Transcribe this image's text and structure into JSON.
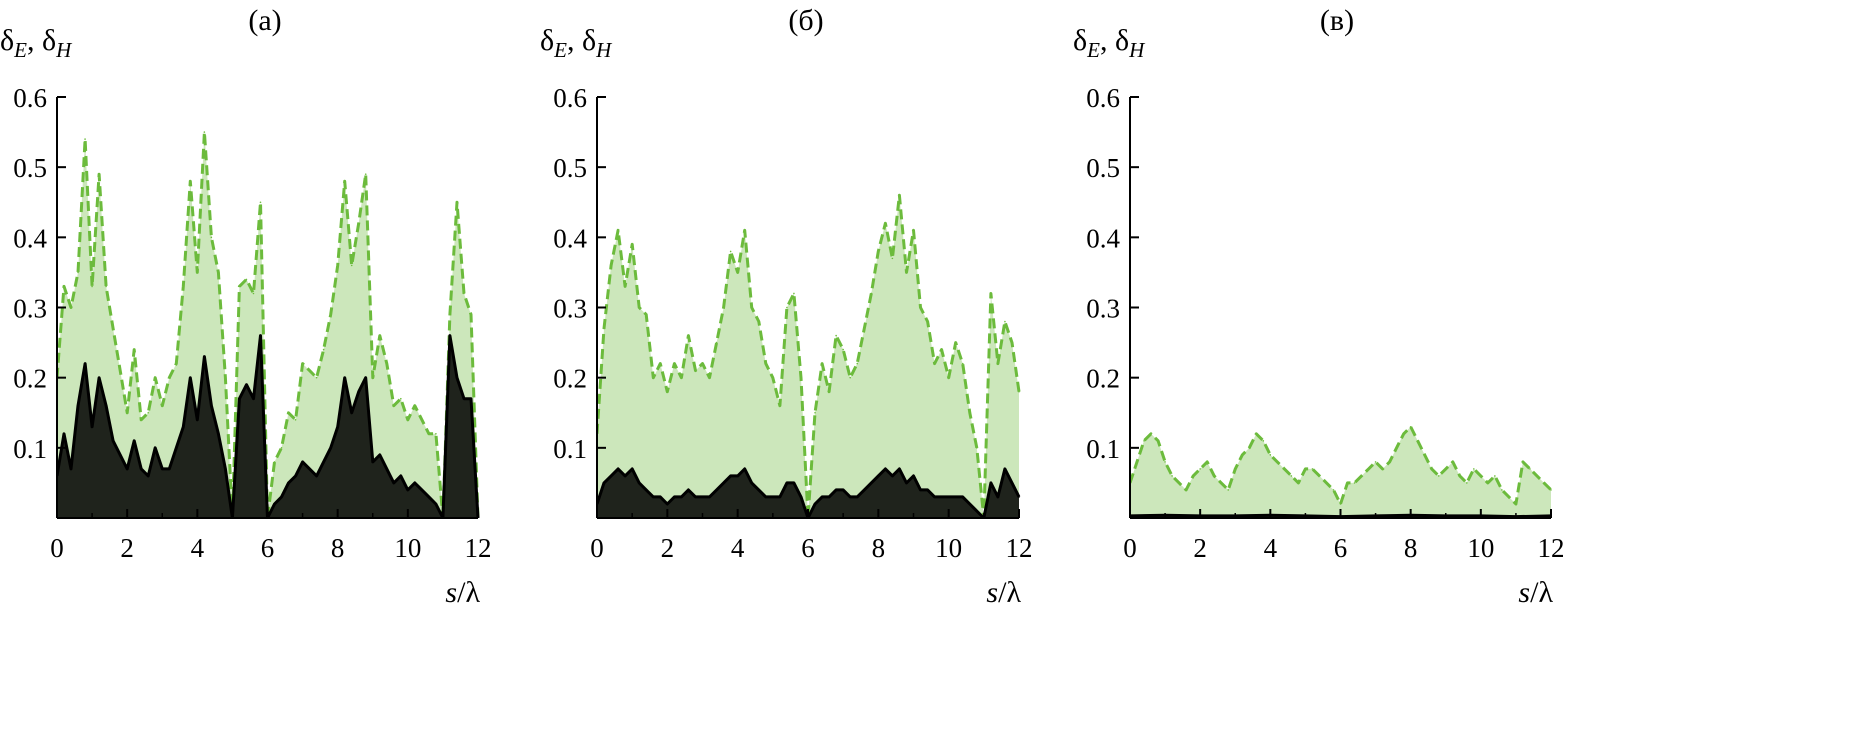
{
  "colors": {
    "dashed_series": "#6cbb3c",
    "solid_series": "#000000",
    "axis": "#000000"
  },
  "chart_data": [
    {
      "type": "line",
      "title": "(а)",
      "ylabel_main": "δ",
      "ylabel_sub1": "E",
      "ylabel_sep": ", δ",
      "ylabel_sub2": "H",
      "xlabel_main": "s",
      "xlabel_rest": "/λ",
      "xlim": [
        0,
        12
      ],
      "ylim": [
        0,
        0.6
      ],
      "xticks": [
        "0",
        "2",
        "4",
        "6",
        "8",
        "10",
        "12"
      ],
      "yticks": [
        "0.1",
        "0.2",
        "0.3",
        "0.4",
        "0.5",
        "0.6"
      ],
      "grid": false,
      "series": [
        {
          "style": "dashed",
          "color": "#6cbb3c",
          "x": [
            0.0,
            0.2,
            0.4,
            0.6,
            0.8,
            1.0,
            1.2,
            1.4,
            1.6,
            1.8,
            2.0,
            2.2,
            2.4,
            2.6,
            2.8,
            3.0,
            3.2,
            3.4,
            3.6,
            3.8,
            4.0,
            4.2,
            4.4,
            4.6,
            4.8,
            5.0,
            5.2,
            5.4,
            5.6,
            5.8,
            6.0,
            6.2,
            6.4,
            6.6,
            6.8,
            7.0,
            7.2,
            7.4,
            7.6,
            7.8,
            8.0,
            8.2,
            8.4,
            8.6,
            8.8,
            9.0,
            9.2,
            9.4,
            9.6,
            9.8,
            10.0,
            10.2,
            10.4,
            10.6,
            10.8,
            11.0,
            11.2,
            11.4,
            11.6,
            11.8,
            12.0
          ],
          "y": [
            0.2,
            0.33,
            0.3,
            0.35,
            0.54,
            0.33,
            0.49,
            0.33,
            0.27,
            0.21,
            0.15,
            0.24,
            0.14,
            0.15,
            0.2,
            0.16,
            0.2,
            0.22,
            0.33,
            0.48,
            0.35,
            0.55,
            0.4,
            0.35,
            0.2,
            0.0,
            0.33,
            0.34,
            0.32,
            0.45,
            0.0,
            0.08,
            0.1,
            0.15,
            0.14,
            0.22,
            0.21,
            0.2,
            0.24,
            0.29,
            0.36,
            0.48,
            0.36,
            0.42,
            0.49,
            0.2,
            0.26,
            0.22,
            0.16,
            0.17,
            0.14,
            0.16,
            0.14,
            0.12,
            0.12,
            0.0,
            0.29,
            0.45,
            0.32,
            0.29,
            0.0
          ]
        },
        {
          "style": "solid",
          "color": "#000000",
          "x": [
            0.0,
            0.2,
            0.4,
            0.6,
            0.8,
            1.0,
            1.2,
            1.4,
            1.6,
            1.8,
            2.0,
            2.2,
            2.4,
            2.6,
            2.8,
            3.0,
            3.2,
            3.4,
            3.6,
            3.8,
            4.0,
            4.2,
            4.4,
            4.6,
            4.8,
            5.0,
            5.2,
            5.4,
            5.6,
            5.8,
            6.0,
            6.2,
            6.4,
            6.6,
            6.8,
            7.0,
            7.2,
            7.4,
            7.6,
            7.8,
            8.0,
            8.2,
            8.4,
            8.6,
            8.8,
            9.0,
            9.2,
            9.4,
            9.6,
            9.8,
            10.0,
            10.2,
            10.4,
            10.6,
            10.8,
            11.0,
            11.2,
            11.4,
            11.6,
            11.8,
            12.0
          ],
          "y": [
            0.06,
            0.12,
            0.07,
            0.16,
            0.22,
            0.13,
            0.2,
            0.16,
            0.11,
            0.09,
            0.07,
            0.11,
            0.07,
            0.06,
            0.1,
            0.07,
            0.07,
            0.1,
            0.13,
            0.2,
            0.14,
            0.23,
            0.16,
            0.12,
            0.07,
            0.0,
            0.17,
            0.19,
            0.17,
            0.26,
            0.0,
            0.02,
            0.03,
            0.05,
            0.06,
            0.08,
            0.07,
            0.06,
            0.08,
            0.1,
            0.13,
            0.2,
            0.15,
            0.18,
            0.2,
            0.08,
            0.09,
            0.07,
            0.05,
            0.06,
            0.04,
            0.05,
            0.04,
            0.03,
            0.02,
            0.0,
            0.26,
            0.2,
            0.17,
            0.17,
            0.0
          ]
        }
      ]
    },
    {
      "type": "line",
      "title": "(б)",
      "ylabel_main": "δ",
      "ylabel_sub1": "E",
      "ylabel_sep": ", δ",
      "ylabel_sub2": "H",
      "xlabel_main": "s",
      "xlabel_rest": "/λ",
      "xlim": [
        0,
        12
      ],
      "ylim": [
        0,
        0.6
      ],
      "xticks": [
        "0",
        "2",
        "4",
        "6",
        "8",
        "10",
        "12"
      ],
      "yticks": [
        "0.1",
        "0.2",
        "0.3",
        "0.4",
        "0.5",
        "0.6"
      ],
      "grid": false,
      "series": [
        {
          "style": "dashed",
          "color": "#6cbb3c",
          "x": [
            0.0,
            0.2,
            0.4,
            0.6,
            0.8,
            1.0,
            1.2,
            1.4,
            1.6,
            1.8,
            2.0,
            2.2,
            2.4,
            2.6,
            2.8,
            3.0,
            3.2,
            3.4,
            3.6,
            3.8,
            4.0,
            4.2,
            4.4,
            4.6,
            4.8,
            5.0,
            5.2,
            5.4,
            5.6,
            5.8,
            6.0,
            6.2,
            6.4,
            6.6,
            6.8,
            7.0,
            7.2,
            7.4,
            7.6,
            7.8,
            8.0,
            8.2,
            8.4,
            8.6,
            8.8,
            9.0,
            9.2,
            9.4,
            9.6,
            9.8,
            10.0,
            10.2,
            10.4,
            10.6,
            10.8,
            11.0,
            11.2,
            11.4,
            11.6,
            11.8,
            12.0
          ],
          "y": [
            0.12,
            0.27,
            0.36,
            0.41,
            0.33,
            0.39,
            0.3,
            0.29,
            0.2,
            0.22,
            0.18,
            0.22,
            0.2,
            0.26,
            0.21,
            0.22,
            0.2,
            0.25,
            0.3,
            0.38,
            0.35,
            0.41,
            0.3,
            0.28,
            0.22,
            0.2,
            0.16,
            0.3,
            0.32,
            0.2,
            0.0,
            0.15,
            0.22,
            0.18,
            0.26,
            0.24,
            0.2,
            0.22,
            0.27,
            0.32,
            0.38,
            0.42,
            0.37,
            0.46,
            0.35,
            0.41,
            0.3,
            0.28,
            0.22,
            0.24,
            0.2,
            0.25,
            0.22,
            0.15,
            0.1,
            0.0,
            0.32,
            0.22,
            0.28,
            0.25,
            0.18
          ]
        },
        {
          "style": "solid",
          "color": "#000000",
          "x": [
            0.0,
            0.2,
            0.4,
            0.6,
            0.8,
            1.0,
            1.2,
            1.4,
            1.6,
            1.8,
            2.0,
            2.2,
            2.4,
            2.6,
            2.8,
            3.0,
            3.2,
            3.4,
            3.6,
            3.8,
            4.0,
            4.2,
            4.4,
            4.6,
            4.8,
            5.0,
            5.2,
            5.4,
            5.6,
            5.8,
            6.0,
            6.2,
            6.4,
            6.6,
            6.8,
            7.0,
            7.2,
            7.4,
            7.6,
            7.8,
            8.0,
            8.2,
            8.4,
            8.6,
            8.8,
            9.0,
            9.2,
            9.4,
            9.6,
            9.8,
            10.0,
            10.2,
            10.4,
            10.6,
            10.8,
            11.0,
            11.2,
            11.4,
            11.6,
            11.8,
            12.0
          ],
          "y": [
            0.02,
            0.05,
            0.06,
            0.07,
            0.06,
            0.07,
            0.05,
            0.04,
            0.03,
            0.03,
            0.02,
            0.03,
            0.03,
            0.04,
            0.03,
            0.03,
            0.03,
            0.04,
            0.05,
            0.06,
            0.06,
            0.07,
            0.05,
            0.04,
            0.03,
            0.03,
            0.03,
            0.05,
            0.05,
            0.03,
            0.0,
            0.02,
            0.03,
            0.03,
            0.04,
            0.04,
            0.03,
            0.03,
            0.04,
            0.05,
            0.06,
            0.07,
            0.06,
            0.07,
            0.05,
            0.06,
            0.04,
            0.04,
            0.03,
            0.03,
            0.03,
            0.03,
            0.03,
            0.02,
            0.01,
            0.0,
            0.05,
            0.03,
            0.07,
            0.05,
            0.03
          ]
        }
      ]
    },
    {
      "type": "line",
      "title": "(в)",
      "ylabel_main": "δ",
      "ylabel_sub1": "E",
      "ylabel_sep": ", δ",
      "ylabel_sub2": "H",
      "xlabel_main": "s",
      "xlabel_rest": "/λ",
      "xlim": [
        0,
        12
      ],
      "ylim": [
        0,
        0.6
      ],
      "xticks": [
        "0",
        "2",
        "4",
        "6",
        "8",
        "10",
        "12"
      ],
      "yticks": [
        "0.1",
        "0.2",
        "0.3",
        "0.4",
        "0.5",
        "0.6"
      ],
      "grid": false,
      "series": [
        {
          "style": "dashed",
          "color": "#6cbb3c",
          "x": [
            0.0,
            0.2,
            0.4,
            0.6,
            0.8,
            1.0,
            1.2,
            1.4,
            1.6,
            1.8,
            2.0,
            2.2,
            2.4,
            2.6,
            2.8,
            3.0,
            3.2,
            3.4,
            3.6,
            3.8,
            4.0,
            4.2,
            4.4,
            4.6,
            4.8,
            5.0,
            5.2,
            5.4,
            5.6,
            5.8,
            6.0,
            6.2,
            6.4,
            6.6,
            6.8,
            7.0,
            7.2,
            7.4,
            7.6,
            7.8,
            8.0,
            8.2,
            8.4,
            8.6,
            8.8,
            9.0,
            9.2,
            9.4,
            9.6,
            9.8,
            10.0,
            10.2,
            10.4,
            10.6,
            10.8,
            11.0,
            11.2,
            11.4,
            11.6,
            11.8,
            12.0
          ],
          "y": [
            0.05,
            0.08,
            0.11,
            0.12,
            0.11,
            0.08,
            0.06,
            0.05,
            0.04,
            0.06,
            0.07,
            0.08,
            0.06,
            0.05,
            0.04,
            0.07,
            0.09,
            0.1,
            0.12,
            0.11,
            0.09,
            0.08,
            0.07,
            0.06,
            0.05,
            0.07,
            0.07,
            0.06,
            0.05,
            0.04,
            0.02,
            0.05,
            0.05,
            0.06,
            0.07,
            0.08,
            0.07,
            0.08,
            0.1,
            0.12,
            0.13,
            0.11,
            0.09,
            0.07,
            0.06,
            0.07,
            0.08,
            0.06,
            0.05,
            0.07,
            0.06,
            0.05,
            0.06,
            0.04,
            0.03,
            0.02,
            0.08,
            0.07,
            0.06,
            0.05,
            0.04
          ]
        },
        {
          "style": "solid",
          "color": "#000000",
          "x": [
            0.0,
            1.0,
            2.0,
            3.0,
            4.0,
            5.0,
            6.0,
            7.0,
            8.0,
            9.0,
            10.0,
            11.0,
            12.0
          ],
          "y": [
            0.003,
            0.004,
            0.003,
            0.003,
            0.004,
            0.003,
            0.002,
            0.003,
            0.004,
            0.003,
            0.003,
            0.002,
            0.003
          ]
        }
      ]
    }
  ]
}
